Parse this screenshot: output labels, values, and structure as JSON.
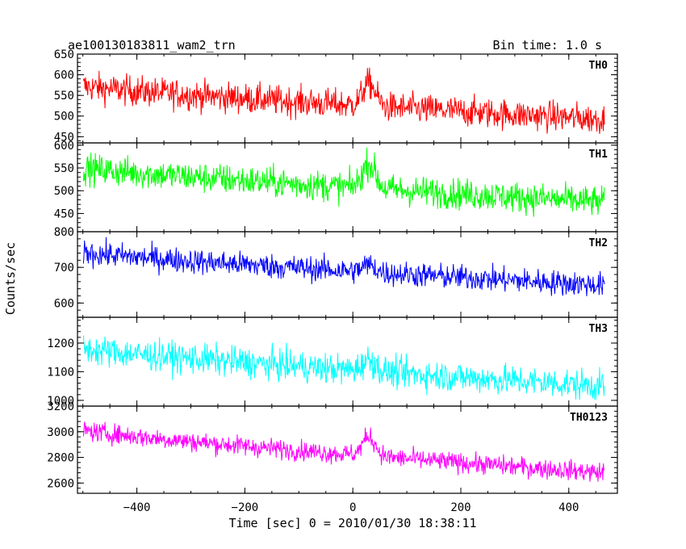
{
  "chart_data": {
    "type": "line",
    "title_left": "ae100130183811_wam2_trn",
    "title_right": "Bin time: 1.0 s",
    "xlabel": "Time [sec] 0 = 2010/01/30 18:38:11",
    "ylabel": "Counts/sec",
    "xlim": [
      -510,
      490
    ],
    "x_ticks": [
      -400,
      -200,
      0,
      200,
      400
    ],
    "x_range": [
      -499,
      466
    ],
    "panels": [
      {
        "name": "TH0",
        "color": "#ff0000",
        "ylim": [
          435,
          650
        ],
        "y_ticks": [
          450,
          500,
          550,
          600,
          650
        ],
        "trend_start": 572,
        "trend_end": 492,
        "noise": 26,
        "peak_x": 30,
        "peak_amp": 55
      },
      {
        "name": "TH1",
        "color": "#00ff00",
        "ylim": [
          410,
          605
        ],
        "y_ticks": [
          450,
          500,
          550,
          600
        ],
        "trend_start": 550,
        "trend_end": 475,
        "noise": 24,
        "peak_x": 30,
        "peak_amp": 55
      },
      {
        "name": "TH2",
        "color": "#0000ff",
        "ylim": [
          560,
          800
        ],
        "y_ticks": [
          600,
          700,
          800
        ],
        "trend_start": 742,
        "trend_end": 650,
        "noise": 25,
        "peak_x": 30,
        "peak_amp": 20
      },
      {
        "name": "TH3",
        "color": "#00ffff",
        "ylim": [
          980,
          1290
        ],
        "y_ticks": [
          1000,
          1100,
          1200
        ],
        "trend_start": 1180,
        "trend_end": 1050,
        "noise": 38,
        "peak_x": 30,
        "peak_amp": 40
      },
      {
        "name": "TH0123",
        "color": "#ff00ff",
        "ylim": [
          2520,
          3200
        ],
        "y_ticks": [
          2600,
          2800,
          3000,
          3200
        ],
        "trend_start": 3010,
        "trend_end": 2680,
        "noise": 55,
        "peak_x": 30,
        "peak_amp": 150
      }
    ]
  }
}
